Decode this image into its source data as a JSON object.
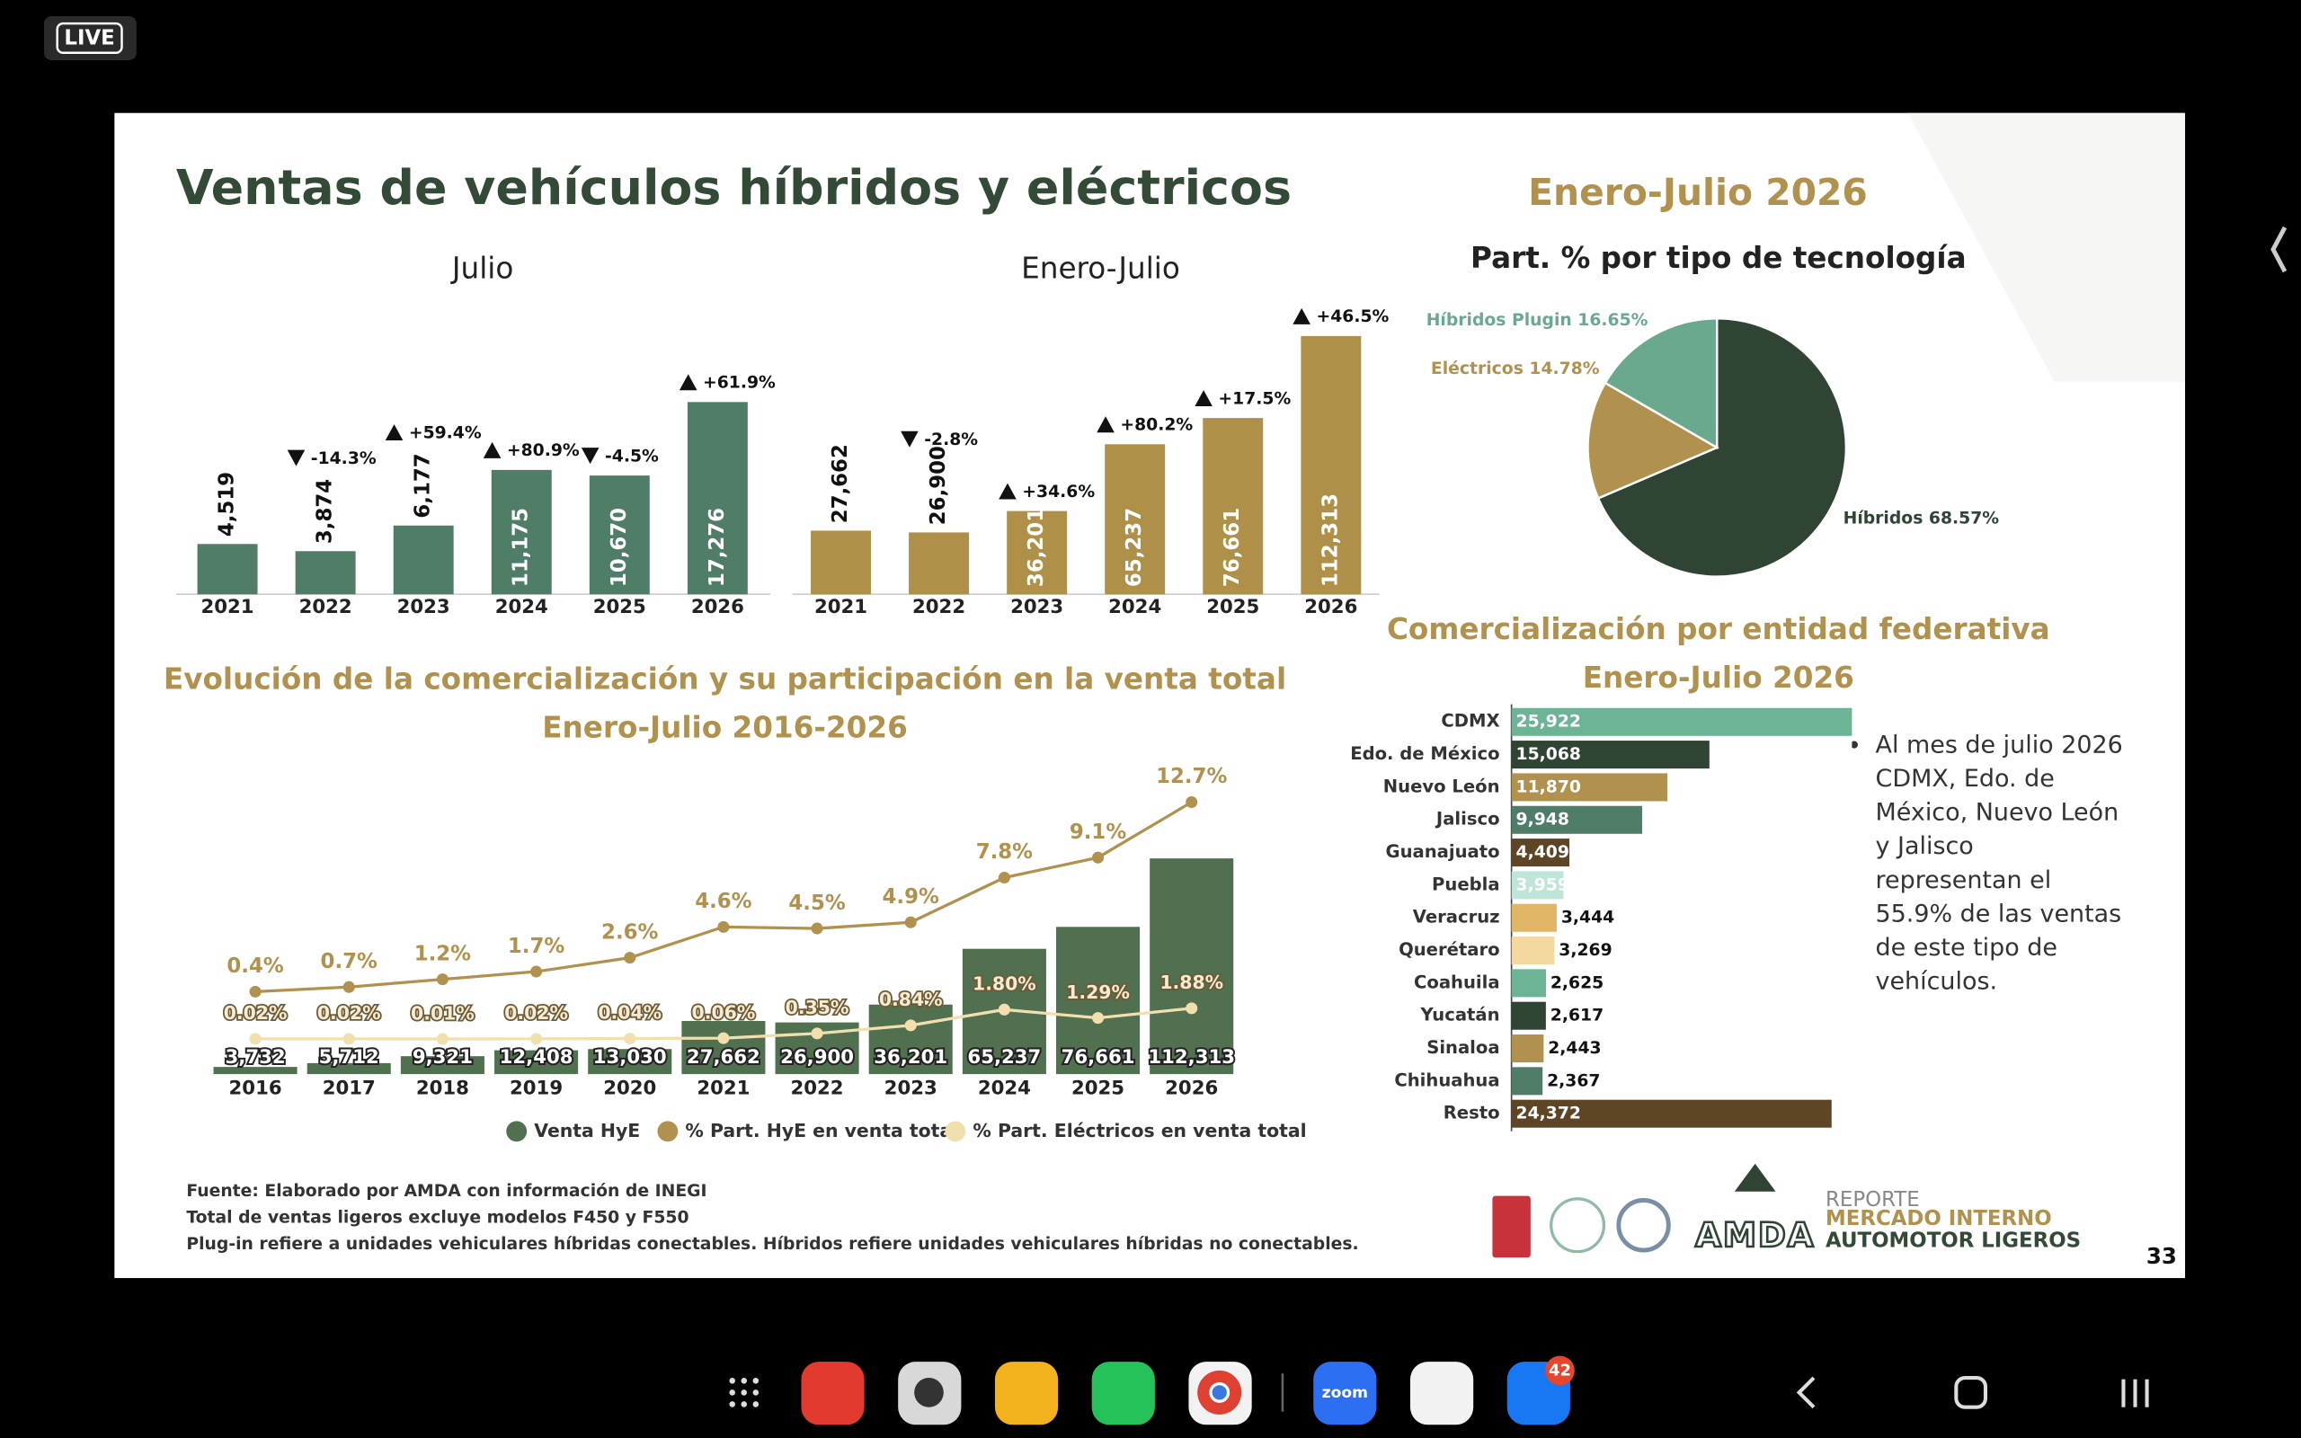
{
  "status": {
    "live": "LIVE"
  },
  "slide": {
    "title": "Ventas de vehículos híbridos y eléctricos",
    "note": "Al mes de julio 2026 CDMX, Edo. de México, Nuevo León y Jalisco representan el 55.9% de las ventas de este tipo de vehículos.",
    "footer": [
      "Fuente: Elaborado por AMDA con información de INEGI",
      "Total de ventas ligeros excluye modelos F450 y F550",
      "Plug-in refiere a unidades vehiculares híbridas conectables. Híbridos refiere unidades vehiculares híbridas no conectables."
    ],
    "brand": "AMDA",
    "report": [
      "REPORTE",
      "MERCADO INTERNO",
      "AUTOMOTOR LIGEROS"
    ],
    "page": 33
  },
  "taskbar": {
    "zoom": "zoom",
    "badge": 42
  },
  "chart_data": [
    {
      "type": "bar",
      "title": "Julio",
      "categories": [
        "2021",
        "2022",
        "2023",
        "2024",
        "2025",
        "2026"
      ],
      "values": [
        4519,
        3874,
        6177,
        11175,
        10670,
        17276
      ],
      "value_labels": [
        "4,519",
        "3,874",
        "6,177",
        "11,175",
        "10,670",
        "17,276"
      ],
      "change_labels": [
        null,
        "-14.3%",
        "+59.4%",
        "+80.9%",
        "-4.5%",
        "+61.9%"
      ],
      "color": "#4f7d67"
    },
    {
      "type": "bar",
      "title": "Enero-Julio",
      "categories": [
        "2021",
        "2022",
        "2023",
        "2024",
        "2025",
        "2026"
      ],
      "values": [
        27662,
        26900,
        36201,
        65237,
        76661,
        112313
      ],
      "value_labels": [
        "27,662",
        "26,900",
        "36,201",
        "65,237",
        "76,661",
        "112,313"
      ],
      "change_labels": [
        null,
        "-2.8%",
        "+34.6%",
        "+80.2%",
        "+17.5%",
        "+46.5%"
      ],
      "color": "#ae9049"
    },
    {
      "type": "pie",
      "title": "Enero-Julio 2026",
      "subtitle": "Part. % por tipo de tecnología",
      "categories": [
        "Híbridos",
        "Eléctricos",
        "Híbridos Plugin"
      ],
      "values": [
        68.57,
        14.78,
        16.65
      ],
      "value_labels": [
        "68.57%",
        "14.78%",
        "16.65%"
      ],
      "colors": [
        "#2f4433",
        "#b0914d",
        "#6aa98e"
      ]
    },
    {
      "type": "combo",
      "title": "Evolución de la comercialización y su participación en la venta total",
      "subtitle": "Enero-Julio  2016-2026",
      "categories": [
        "2016",
        "2017",
        "2018",
        "2019",
        "2020",
        "2021",
        "2022",
        "2023",
        "2024",
        "2025",
        "2026"
      ],
      "series": [
        {
          "name": "Venta HyE",
          "type": "bar",
          "color": "#50704f",
          "values": [
            3732,
            5712,
            9321,
            12408,
            13030,
            27662,
            26900,
            36201,
            65237,
            76661,
            112313
          ],
          "value_labels": [
            "3,732",
            "5,712",
            "9,321",
            "12,408",
            "13,030",
            "27,662",
            "26,900",
            "36,201",
            "65,237",
            "76,661",
            "112,313"
          ]
        },
        {
          "name": "% Part. HyE en venta total",
          "type": "line",
          "color": "#b0914d",
          "values": [
            0.4,
            0.7,
            1.2,
            1.7,
            2.6,
            4.6,
            4.5,
            4.9,
            7.8,
            9.1,
            12.7
          ],
          "value_labels": [
            "0.4%",
            "0.7%",
            "1.2%",
            "1.7%",
            "2.6%",
            "4.6%",
            "4.5%",
            "4.9%",
            "7.8%",
            "9.1%",
            "12.7%"
          ]
        },
        {
          "name": "% Part. Eléctricos en venta total",
          "type": "line",
          "color": "#f2dfae",
          "values": [
            0.02,
            0.02,
            0.01,
            0.02,
            0.04,
            0.06,
            0.35,
            0.84,
            1.8,
            1.29,
            1.88
          ],
          "value_labels": [
            "0.02%",
            "0.02%",
            "0.01%",
            "0.02%",
            "0.04%",
            "0.06%",
            "0.35%",
            "0.84%",
            "1.80%",
            "1.29%",
            "1.88%"
          ]
        }
      ]
    },
    {
      "type": "hbar",
      "title": "Comercialización por entidad federativa",
      "subtitle": "Enero-Julio  2026",
      "categories": [
        "CDMX",
        "Edo. de México",
        "Nuevo León",
        "Jalisco",
        "Guanajuato",
        "Puebla",
        "Veracruz",
        "Querétaro",
        "Coahuila",
        "Yucatán",
        "Sinaloa",
        "Chihuahua",
        "Resto"
      ],
      "values": [
        25922,
        15068,
        11870,
        9948,
        4409,
        3959,
        3444,
        3269,
        2625,
        2617,
        2443,
        2367,
        24372
      ],
      "value_labels": [
        "25,922",
        "15,068",
        "11,870",
        "9,948",
        "4,409",
        "3,959",
        "3,444",
        "3,269",
        "2,625",
        "2,617",
        "2,443",
        "2,367",
        "24,372"
      ],
      "colors": [
        "#6db396",
        "#2f4433",
        "#b0914d",
        "#4f7d67",
        "#5e4526",
        "#bfe5d6",
        "#e0b566",
        "#f3d9a0",
        "#6db396",
        "#2f4433",
        "#b0914d",
        "#4f7d67",
        "#5e4526"
      ]
    }
  ]
}
